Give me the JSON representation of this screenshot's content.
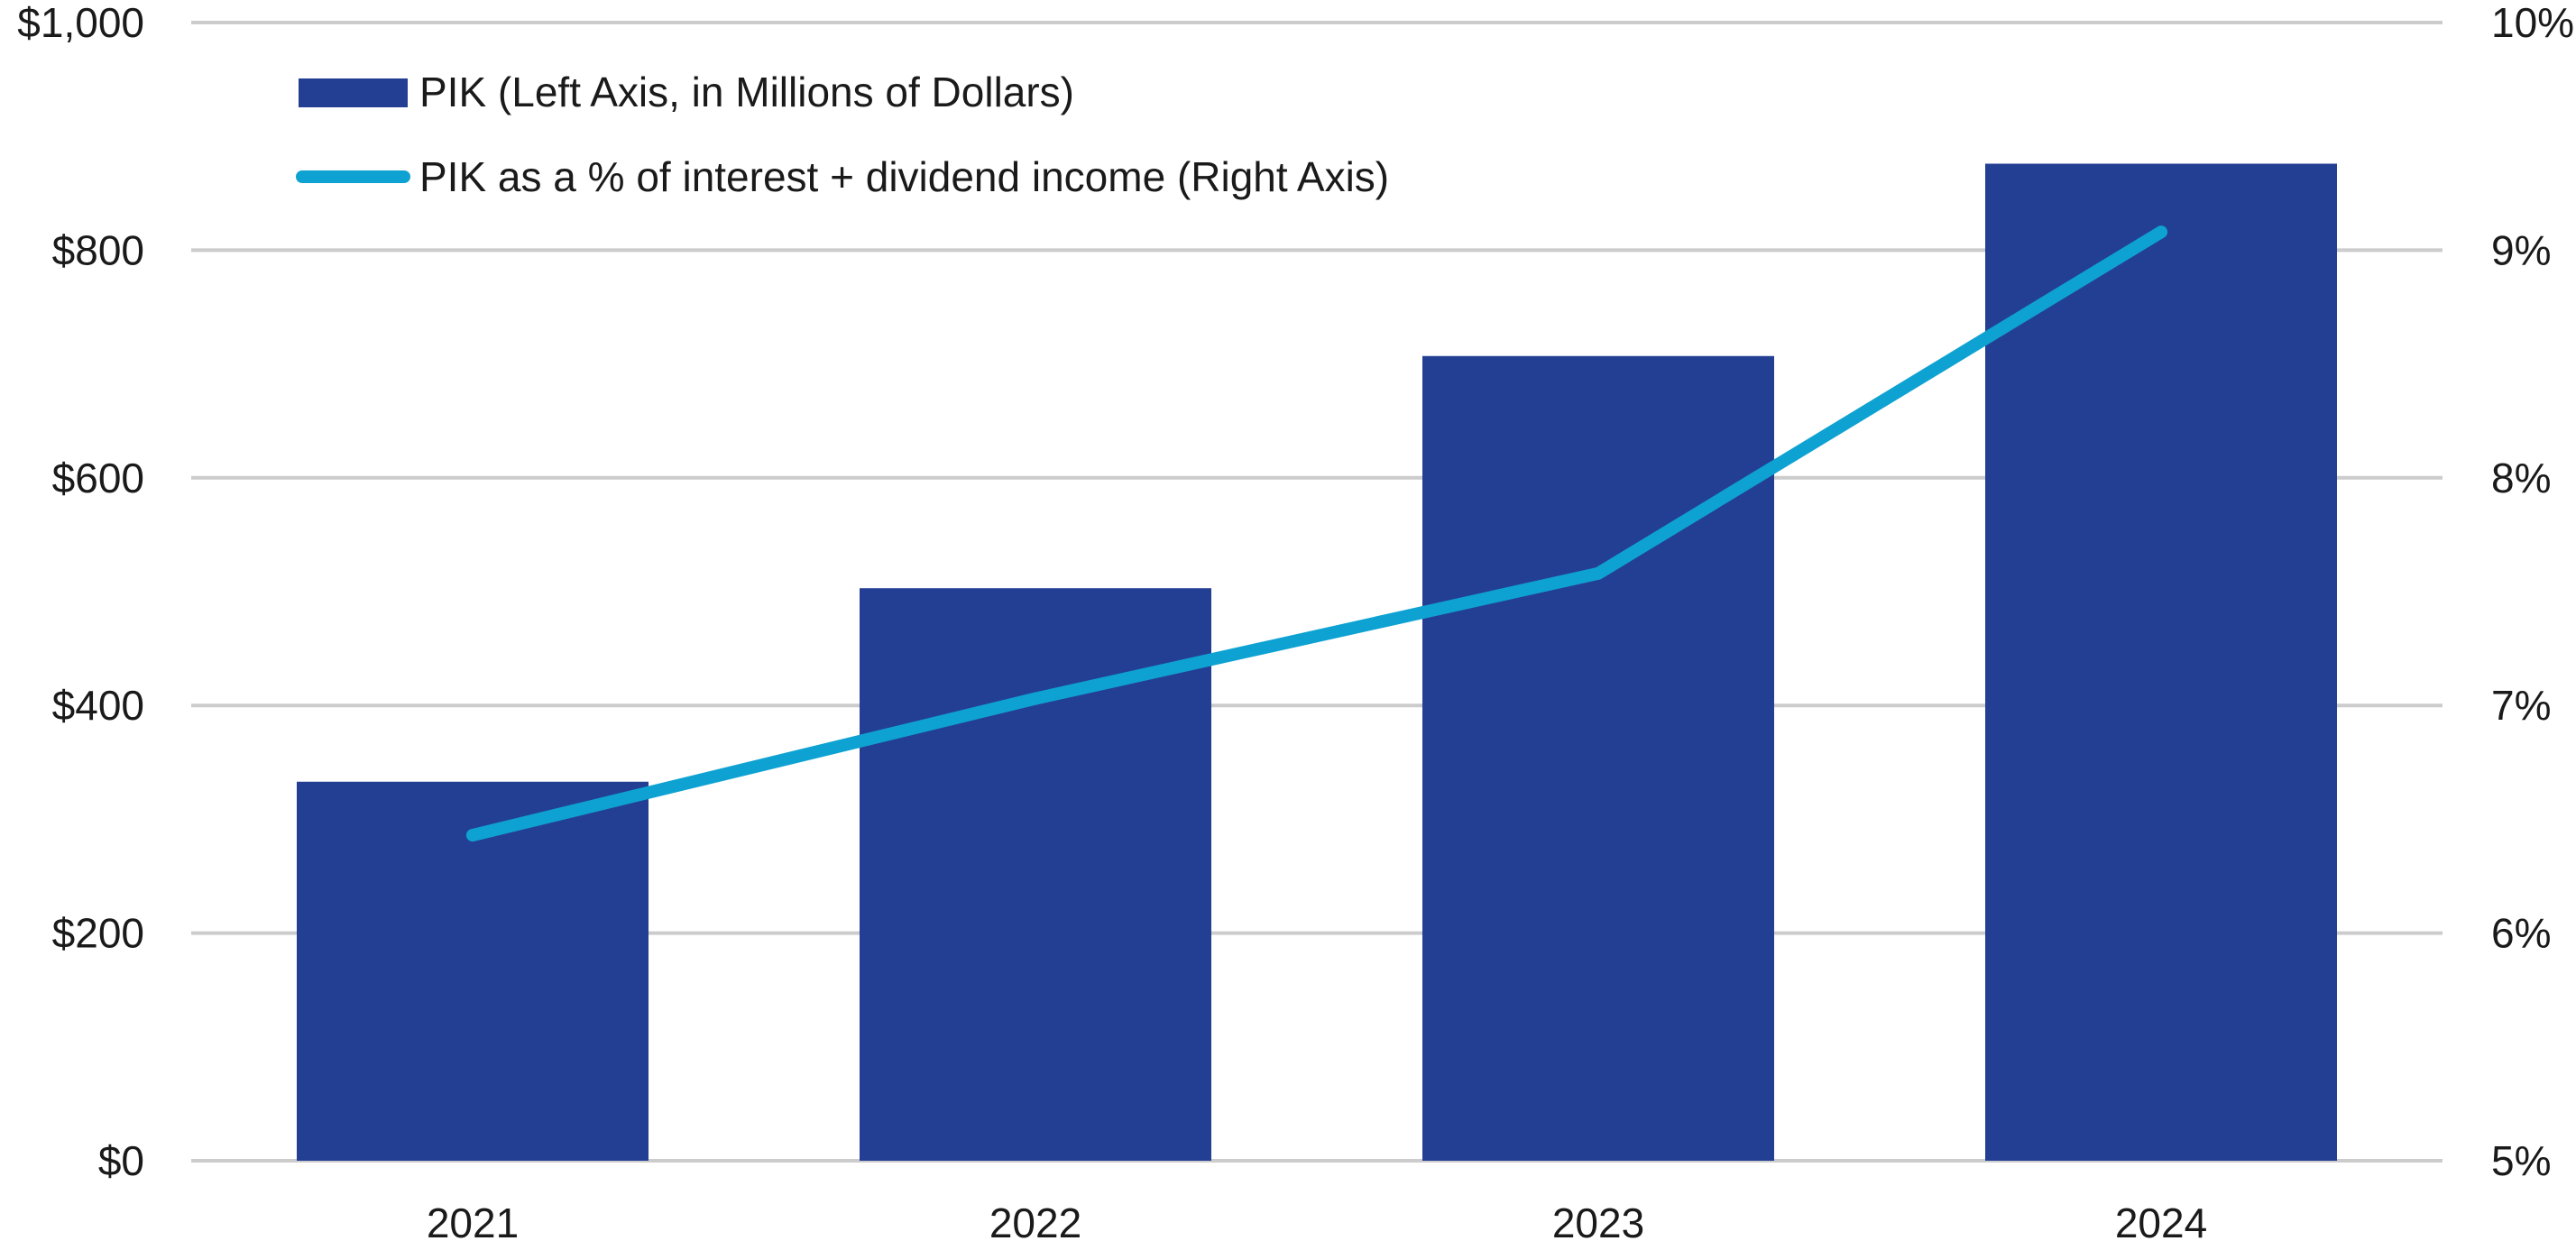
{
  "chart_data": {
    "type": "bar",
    "categories": [
      "2021",
      "2022",
      "2023",
      "2024"
    ],
    "series": [
      {
        "name": "PIK (Left Axis, in Millions of Dollars)",
        "type": "bar",
        "axis": "left",
        "values": [
          333,
          503,
          707,
          876
        ],
        "color": "#233f94"
      },
      {
        "name": "PIK as a % of interest + dividend income (Right Axis)",
        "type": "line",
        "axis": "right",
        "values": [
          6.43,
          7.03,
          7.58,
          9.08
        ],
        "color": "#0ea2d2"
      }
    ],
    "y_left": {
      "ylim": [
        0,
        1000
      ],
      "ticks": [
        0,
        200,
        400,
        600,
        800,
        1000
      ],
      "tick_labels": [
        "$0",
        "$200",
        "$400",
        "$600",
        "$800",
        "$1,000"
      ]
    },
    "y_right": {
      "ylim": [
        5,
        10
      ],
      "ticks": [
        5,
        6,
        7,
        8,
        9,
        10
      ],
      "tick_labels": [
        "5%",
        "6%",
        "7%",
        "8%",
        "9%",
        "10%"
      ]
    },
    "grid": true,
    "legend_position": "top-left",
    "gridline_color": "#cccccc"
  }
}
